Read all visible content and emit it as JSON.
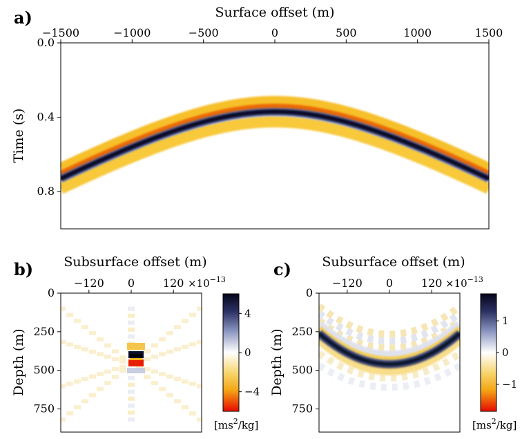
{
  "chart_data": [
    {
      "panel": "a)",
      "type": "heatmap",
      "xlabel": "Surface offset (m)",
      "ylabel": "Time (s)",
      "xlim": [
        -1500,
        1500
      ],
      "ylim": [
        0.0,
        1.0
      ],
      "y_inverted": true,
      "x_ticks": [
        "−1500",
        "−1000",
        "−500",
        "0",
        "500",
        "1000",
        "1500"
      ],
      "x_tick_values": [
        -1500,
        -1000,
        -500,
        0,
        500,
        1000,
        1500
      ],
      "y_ticks": [
        "0.0",
        "0.4",
        "0.8"
      ],
      "y_tick_values": [
        0.0,
        0.4,
        0.8
      ],
      "x_axis_position": "top",
      "event": {
        "apex_offset_m": 0,
        "apex_time_s": 0.37,
        "edge_time_s": 0.73,
        "edge_offset_m": 1500
      }
    },
    {
      "panel": "b)",
      "type": "heatmap",
      "xlabel": "Subsurface offset (m)",
      "ylabel": "Depth (m)",
      "xlim": [
        -200,
        200
      ],
      "ylim": [
        0,
        900
      ],
      "y_inverted": true,
      "x_ticks": [
        "−120",
        "0",
        "120"
      ],
      "x_tick_values": [
        -120,
        0,
        120
      ],
      "y_ticks": [
        "0",
        "250",
        "500",
        "750"
      ],
      "y_tick_values": [
        0,
        250,
        500,
        750
      ],
      "x_axis_position": "top",
      "colorbar": {
        "ticks": [
          "4",
          "0",
          "−4"
        ],
        "tick_values": [
          4,
          0,
          -4
        ],
        "range": [
          -6,
          6
        ],
        "multiplier": "×10",
        "exponent": "−13",
        "unit": "[ms",
        "unit_sup": "2",
        "unit_rest": "/kg]"
      },
      "focus": {
        "x_m": 0,
        "depth_m": 460
      }
    },
    {
      "panel": "c)",
      "type": "heatmap",
      "xlabel": "Subsurface offset (m)",
      "ylabel": "Depth (m)",
      "xlim": [
        -200,
        200
      ],
      "ylim": [
        0,
        900
      ],
      "y_inverted": true,
      "x_ticks": [
        "−120",
        "0",
        "120"
      ],
      "x_tick_values": [
        -120,
        0,
        120
      ],
      "y_ticks": [
        "0",
        "250",
        "500",
        "750"
      ],
      "y_tick_values": [
        0,
        250,
        500,
        750
      ],
      "x_axis_position": "top",
      "colorbar": {
        "ticks": [
          "1",
          "0",
          "−1"
        ],
        "tick_values": [
          1,
          0,
          -1
        ],
        "range": [
          -1.85,
          1.85
        ],
        "multiplier": "×10",
        "exponent": "−13",
        "unit": "[ms",
        "unit_sup": "2",
        "unit_rest": "/kg]"
      },
      "curve": {
        "x_m": [
          -200,
          -120,
          0,
          120,
          200
        ],
        "depth_m": [
          260,
          400,
          460,
          400,
          260
        ]
      }
    }
  ],
  "colors": {
    "positive": "#0c0e2a",
    "mid_positive": "#7a86b6",
    "zero": "#ffffff",
    "mid_negative": "#f5bb1e",
    "negative": "#e60d00"
  }
}
